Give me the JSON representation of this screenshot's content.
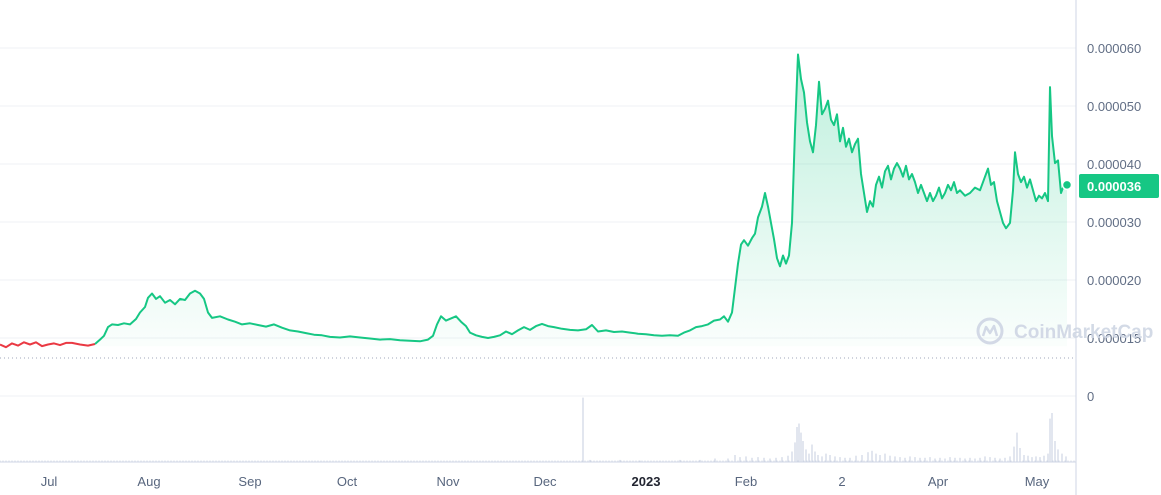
{
  "watermark": "CoinMarketCap",
  "current_price_label": "0.000036",
  "colors": {
    "up": "#16c784",
    "down": "#ea3943",
    "fill": "#16c784",
    "grid": "#eff2f5",
    "axis": "#cfd6e4",
    "volume": "#cfd6e4",
    "tick_text": "#616e85"
  },
  "chart_data": {
    "type": "area",
    "y_ticks": [
      "0.000060",
      "0.000050",
      "0.000040",
      "0.000030",
      "0.000020",
      "0.000015",
      "0"
    ],
    "x_ticks": [
      "Jul",
      "Aug",
      "Sep",
      "Oct",
      "Nov",
      "Dec",
      "2023",
      "Feb",
      "2",
      "Apr",
      "May"
    ],
    "x_ticks_bold": [
      "2023"
    ],
    "price_ylim": [
      7.8e-06,
      6.12e-05
    ],
    "baseline_price": 6.3e-06,
    "series": [
      {
        "values": [
          [
            0,
            6.6e-06
          ],
          [
            6,
            6.1e-06
          ],
          [
            12,
            6.8e-06
          ],
          [
            18,
            6.4e-06
          ],
          [
            24,
            7e-06
          ],
          [
            30,
            6.6e-06
          ],
          [
            36,
            7e-06
          ],
          [
            42,
            6.3e-06
          ],
          [
            48,
            6.6e-06
          ],
          [
            54,
            6.8e-06
          ],
          [
            60,
            6.5e-06
          ],
          [
            66,
            6.9e-06
          ],
          [
            72,
            6.9e-06
          ],
          [
            80,
            6.6e-06
          ],
          [
            88,
            6.4e-06
          ],
          [
            95,
            6.7e-06
          ],
          [
            100,
            7.5e-06
          ],
          [
            104,
            8.2e-06
          ],
          [
            108,
            9.8e-06
          ],
          [
            112,
            1.03e-05
          ],
          [
            118,
            1.02e-05
          ],
          [
            124,
            1.05e-05
          ],
          [
            130,
            1.03e-05
          ],
          [
            136,
            1.13e-05
          ],
          [
            140,
            1.25e-05
          ],
          [
            145,
            1.35e-05
          ],
          [
            148,
            1.52e-05
          ],
          [
            152,
            1.6e-05
          ],
          [
            156,
            1.5e-05
          ],
          [
            160,
            1.55e-05
          ],
          [
            165,
            1.43e-05
          ],
          [
            170,
            1.48e-05
          ],
          [
            175,
            1.4e-05
          ],
          [
            180,
            1.5e-05
          ],
          [
            185,
            1.48e-05
          ],
          [
            190,
            1.6e-05
          ],
          [
            195,
            1.65e-05
          ],
          [
            200,
            1.6e-05
          ],
          [
            204,
            1.5e-05
          ],
          [
            208,
            1.25e-05
          ],
          [
            212,
            1.15e-05
          ],
          [
            220,
            1.18e-05
          ],
          [
            228,
            1.12e-05
          ],
          [
            235,
            1.08e-05
          ],
          [
            242,
            1.03e-05
          ],
          [
            250,
            1.05e-05
          ],
          [
            258,
            1.02e-05
          ],
          [
            266,
            9.9e-06
          ],
          [
            274,
            1.03e-05
          ],
          [
            282,
            9.7e-06
          ],
          [
            290,
            9.2e-06
          ],
          [
            298,
            9e-06
          ],
          [
            306,
            8.7e-06
          ],
          [
            314,
            8.4e-06
          ],
          [
            322,
            8.3e-06
          ],
          [
            330,
            8e-06
          ],
          [
            340,
            7.9e-06
          ],
          [
            350,
            8.1e-06
          ],
          [
            360,
            7.9e-06
          ],
          [
            370,
            7.7e-06
          ],
          [
            380,
            7.5e-06
          ],
          [
            390,
            7.6e-06
          ],
          [
            400,
            7.4e-06
          ],
          [
            410,
            7.3e-06
          ],
          [
            420,
            7.2e-06
          ],
          [
            428,
            7.5e-06
          ],
          [
            433,
            8.2e-06
          ],
          [
            437,
            1.03e-05
          ],
          [
            441,
            1.18e-05
          ],
          [
            446,
            1.1e-05
          ],
          [
            451,
            1.14e-05
          ],
          [
            456,
            1.18e-05
          ],
          [
            461,
            1.08e-05
          ],
          [
            466,
            1e-05
          ],
          [
            470,
            8.8e-06
          ],
          [
            476,
            8.3e-06
          ],
          [
            482,
            8e-06
          ],
          [
            488,
            7.8e-06
          ],
          [
            494,
            8e-06
          ],
          [
            500,
            8.3e-06
          ],
          [
            506,
            9e-06
          ],
          [
            512,
            8.5e-06
          ],
          [
            518,
            9.2e-06
          ],
          [
            524,
            9.8e-06
          ],
          [
            530,
            9.3e-06
          ],
          [
            536,
            1e-05
          ],
          [
            542,
            1.04e-05
          ],
          [
            548,
            1e-05
          ],
          [
            554,
            9.8e-06
          ],
          [
            562,
            9.5e-06
          ],
          [
            570,
            9.3e-06
          ],
          [
            578,
            9.2e-06
          ],
          [
            586,
            9.4e-06
          ],
          [
            592,
            1.02e-05
          ],
          [
            598,
            9e-06
          ],
          [
            606,
            9.2e-06
          ],
          [
            614,
            8.9e-06
          ],
          [
            622,
            9e-06
          ],
          [
            630,
            8.8e-06
          ],
          [
            638,
            8.6e-06
          ],
          [
            646,
            8.5e-06
          ],
          [
            654,
            8.3e-06
          ],
          [
            662,
            8.2e-06
          ],
          [
            670,
            8.3e-06
          ],
          [
            678,
            8.2e-06
          ],
          [
            684,
            8.8e-06
          ],
          [
            690,
            9.2e-06
          ],
          [
            696,
            9.8e-06
          ],
          [
            702,
            1e-05
          ],
          [
            708,
            1.03e-05
          ],
          [
            714,
            1.1e-05
          ],
          [
            720,
            1.12e-05
          ],
          [
            724,
            1.18e-05
          ],
          [
            728,
            1.08e-05
          ],
          [
            732,
            1.25e-05
          ],
          [
            735,
            1.7e-05
          ],
          [
            738,
            2.15e-05
          ],
          [
            741,
            2.5e-05
          ],
          [
            744,
            2.58e-05
          ],
          [
            748,
            2.48e-05
          ],
          [
            752,
            2.62e-05
          ],
          [
            755,
            2.7e-05
          ],
          [
            758,
            3e-05
          ],
          [
            762,
            3.2e-05
          ],
          [
            765,
            3.45e-05
          ],
          [
            768,
            3.2e-05
          ],
          [
            771,
            2.9e-05
          ],
          [
            774,
            2.6e-05
          ],
          [
            777,
            2.25e-05
          ],
          [
            780,
            2.1e-05
          ],
          [
            783,
            2.3e-05
          ],
          [
            786,
            2.15e-05
          ],
          [
            789,
            2.3e-05
          ],
          [
            792,
            2.9e-05
          ],
          [
            795,
            4.6e-05
          ],
          [
            798,
            6e-05
          ],
          [
            801,
            5.55e-05
          ],
          [
            804,
            5.3e-05
          ],
          [
            807,
            4.75e-05
          ],
          [
            810,
            4.4e-05
          ],
          [
            813,
            4.2e-05
          ],
          [
            816,
            4.7e-05
          ],
          [
            819,
            5.5e-05
          ],
          [
            822,
            4.9e-05
          ],
          [
            825,
            5e-05
          ],
          [
            828,
            5.15e-05
          ],
          [
            831,
            4.8e-05
          ],
          [
            834,
            4.7e-05
          ],
          [
            837,
            4.9e-05
          ],
          [
            840,
            4.4e-05
          ],
          [
            843,
            4.65e-05
          ],
          [
            846,
            4.3e-05
          ],
          [
            849,
            4.45e-05
          ],
          [
            852,
            4.2e-05
          ],
          [
            855,
            4.35e-05
          ],
          [
            858,
            4.45e-05
          ],
          [
            861,
            3.8e-05
          ],
          [
            864,
            3.45e-05
          ],
          [
            867,
            3.1e-05
          ],
          [
            870,
            3.3e-05
          ],
          [
            873,
            3.2e-05
          ],
          [
            876,
            3.6e-05
          ],
          [
            879,
            3.75e-05
          ],
          [
            882,
            3.55e-05
          ],
          [
            885,
            3.85e-05
          ],
          [
            888,
            3.95e-05
          ],
          [
            891,
            3.7e-05
          ],
          [
            894,
            3.9e-05
          ],
          [
            897,
            4e-05
          ],
          [
            900,
            3.9e-05
          ],
          [
            903,
            3.75e-05
          ],
          [
            906,
            3.95e-05
          ],
          [
            909,
            3.7e-05
          ],
          [
            912,
            3.8e-05
          ],
          [
            915,
            3.65e-05
          ],
          [
            918,
            3.45e-05
          ],
          [
            921,
            3.6e-05
          ],
          [
            924,
            3.45e-05
          ],
          [
            927,
            3.3e-05
          ],
          [
            930,
            3.45e-05
          ],
          [
            933,
            3.3e-05
          ],
          [
            936,
            3.4e-05
          ],
          [
            939,
            3.55e-05
          ],
          [
            942,
            3.35e-05
          ],
          [
            945,
            3.45e-05
          ],
          [
            948,
            3.6e-05
          ],
          [
            951,
            3.5e-05
          ],
          [
            954,
            3.65e-05
          ],
          [
            957,
            3.45e-05
          ],
          [
            960,
            3.5e-05
          ],
          [
            965,
            3.4e-05
          ],
          [
            970,
            3.45e-05
          ],
          [
            975,
            3.55e-05
          ],
          [
            980,
            3.5e-05
          ],
          [
            985,
            3.75e-05
          ],
          [
            988,
            3.9e-05
          ],
          [
            991,
            3.6e-05
          ],
          [
            994,
            3.65e-05
          ],
          [
            997,
            3.3e-05
          ],
          [
            1000,
            3.1e-05
          ],
          [
            1003,
            2.9e-05
          ],
          [
            1006,
            2.8e-05
          ],
          [
            1010,
            2.9e-05
          ],
          [
            1013,
            3.5e-05
          ],
          [
            1015,
            4.2e-05
          ],
          [
            1018,
            3.8e-05
          ],
          [
            1021,
            3.65e-05
          ],
          [
            1024,
            3.75e-05
          ],
          [
            1027,
            3.55e-05
          ],
          [
            1030,
            3.7e-05
          ],
          [
            1033,
            3.5e-05
          ],
          [
            1036,
            3.3e-05
          ],
          [
            1039,
            3.4e-05
          ],
          [
            1042,
            3.35e-05
          ],
          [
            1045,
            3.45e-05
          ],
          [
            1048,
            3.3e-05
          ],
          [
            1050,
            5.4e-05
          ],
          [
            1052,
            4.5e-05
          ],
          [
            1055,
            4e-05
          ],
          [
            1058,
            4.05e-05
          ],
          [
            1061,
            3.45e-05
          ],
          [
            1064,
            3.6e-05
          ],
          [
            1067,
            3.6e-05
          ]
        ]
      }
    ],
    "volume_series": {
      "values": [
        [
          583,
          0.92
        ],
        [
          590,
          0.03
        ],
        [
          600,
          0.02
        ],
        [
          620,
          0.03
        ],
        [
          640,
          0.02
        ],
        [
          660,
          0.02
        ],
        [
          680,
          0.03
        ],
        [
          700,
          0.03
        ],
        [
          715,
          0.05
        ],
        [
          728,
          0.05
        ],
        [
          735,
          0.1
        ],
        [
          740,
          0.07
        ],
        [
          746,
          0.08
        ],
        [
          752,
          0.06
        ],
        [
          758,
          0.07
        ],
        [
          764,
          0.06
        ],
        [
          770,
          0.05
        ],
        [
          776,
          0.06
        ],
        [
          782,
          0.07
        ],
        [
          788,
          0.09
        ],
        [
          792,
          0.15
        ],
        [
          795,
          0.28
        ],
        [
          797,
          0.5
        ],
        [
          799,
          0.55
        ],
        [
          801,
          0.42
        ],
        [
          803,
          0.3
        ],
        [
          806,
          0.18
        ],
        [
          809,
          0.12
        ],
        [
          812,
          0.25
        ],
        [
          815,
          0.15
        ],
        [
          818,
          0.1
        ],
        [
          822,
          0.08
        ],
        [
          826,
          0.12
        ],
        [
          830,
          0.1
        ],
        [
          835,
          0.08
        ],
        [
          840,
          0.07
        ],
        [
          845,
          0.06
        ],
        [
          850,
          0.06
        ],
        [
          856,
          0.09
        ],
        [
          862,
          0.1
        ],
        [
          868,
          0.14
        ],
        [
          872,
          0.16
        ],
        [
          876,
          0.12
        ],
        [
          880,
          0.1
        ],
        [
          885,
          0.12
        ],
        [
          890,
          0.09
        ],
        [
          895,
          0.08
        ],
        [
          900,
          0.07
        ],
        [
          905,
          0.06
        ],
        [
          910,
          0.08
        ],
        [
          915,
          0.07
        ],
        [
          920,
          0.06
        ],
        [
          925,
          0.06
        ],
        [
          930,
          0.07
        ],
        [
          935,
          0.05
        ],
        [
          940,
          0.06
        ],
        [
          945,
          0.05
        ],
        [
          950,
          0.07
        ],
        [
          955,
          0.06
        ],
        [
          960,
          0.06
        ],
        [
          965,
          0.05
        ],
        [
          970,
          0.06
        ],
        [
          975,
          0.05
        ],
        [
          980,
          0.06
        ],
        [
          985,
          0.08
        ],
        [
          990,
          0.07
        ],
        [
          995,
          0.06
        ],
        [
          1000,
          0.05
        ],
        [
          1005,
          0.06
        ],
        [
          1010,
          0.08
        ],
        [
          1014,
          0.22
        ],
        [
          1017,
          0.42
        ],
        [
          1020,
          0.2
        ],
        [
          1024,
          0.1
        ],
        [
          1028,
          0.09
        ],
        [
          1032,
          0.07
        ],
        [
          1036,
          0.08
        ],
        [
          1040,
          0.07
        ],
        [
          1044,
          0.09
        ],
        [
          1048,
          0.12
        ],
        [
          1050,
          0.62
        ],
        [
          1052,
          0.7
        ],
        [
          1055,
          0.3
        ],
        [
          1058,
          0.18
        ],
        [
          1062,
          0.12
        ],
        [
          1066,
          0.08
        ]
      ]
    }
  }
}
